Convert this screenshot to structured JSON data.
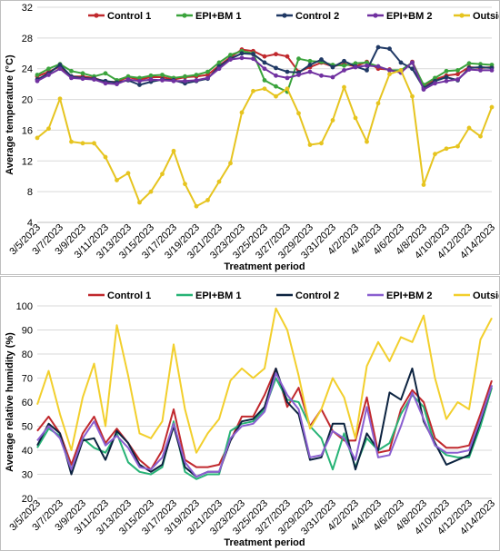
{
  "chart_data": [
    {
      "type": "line",
      "xlabel": "Treatment period",
      "ylabel": "Average temperature (°C)",
      "ylim": [
        4,
        32
      ],
      "yticks": [
        "4",
        "8",
        "12",
        "16",
        "20",
        "24",
        "28",
        "32"
      ],
      "grid": "horizontal",
      "legend_position": "top",
      "x_labels": [
        "3/5/2023",
        "3/7/2023",
        "3/9/2023",
        "3/11/2023",
        "3/13/2023",
        "3/15/2023",
        "3/17/2023",
        "3/19/2023",
        "3/21/2023",
        "3/23/2023",
        "3/25/2023",
        "3/27/2023",
        "3/29/2023",
        "3/31/2023",
        "4/2/2023",
        "4/4/2023",
        "4/6/2023",
        "4/8/2023",
        "4/10/2023",
        "4/12/2023",
        "4/14/2023"
      ],
      "series": [
        {
          "name": "Control 1",
          "color": "#c0282d",
          "marker": "o",
          "values": [
            23,
            23.6,
            24.3,
            23,
            23,
            22.8,
            22.3,
            22.3,
            22.9,
            22.6,
            22.9,
            22.9,
            22.6,
            22.9,
            23,
            23.2,
            24.4,
            25.5,
            26.5,
            26.3,
            25.6,
            25.9,
            25.6,
            23.6,
            24.2,
            24.8,
            24.3,
            24.6,
            24.3,
            24.9,
            24,
            23.9,
            23.5,
            24.9,
            21.8,
            22.6,
            23.1,
            23.3,
            24.2,
            24.1,
            24.2
          ]
        },
        {
          "name": "EPI+BM 1",
          "color": "#3aa33c",
          "marker": "o",
          "values": [
            23.2,
            24,
            24.6,
            23.7,
            23.4,
            23,
            23.4,
            22.5,
            23,
            22.8,
            23.1,
            23.2,
            22.8,
            23,
            23.2,
            23.6,
            24.8,
            25.8,
            26.3,
            26,
            22.5,
            21.7,
            21,
            25.3,
            25,
            24.9,
            24.5,
            24.4,
            24.7,
            24.8,
            24.3,
            23.8,
            23.8,
            24.8,
            21.9,
            22.8,
            23.7,
            23.8,
            24.7,
            24.6,
            24.5
          ]
        },
        {
          "name": "Control 2",
          "color": "#1f3864",
          "marker": "o",
          "values": [
            22.6,
            23.4,
            24.5,
            23,
            22.8,
            22.7,
            22.4,
            22.2,
            22.5,
            21.9,
            22.3,
            22.6,
            22.5,
            22.1,
            22.4,
            22.7,
            24.3,
            25.3,
            26,
            25.9,
            24.8,
            24.1,
            23.6,
            23.5,
            24.5,
            25.2,
            24.2,
            25,
            24.3,
            23.8,
            26.8,
            26.6,
            24.8,
            24,
            21.5,
            22.4,
            22.9,
            22.5,
            24.1,
            24.2,
            24.1
          ]
        },
        {
          "name": "EPI+BM 2",
          "color": "#7030a0",
          "marker": "o",
          "values": [
            22.4,
            23.2,
            24,
            22.8,
            22.7,
            22.6,
            22.1,
            22,
            22.6,
            22.4,
            22.6,
            22.5,
            22.4,
            22.4,
            22.5,
            22.8,
            24,
            25.2,
            25.4,
            25.3,
            24,
            23.1,
            22.8,
            23.2,
            23.6,
            23.1,
            22.9,
            23.8,
            24.2,
            24.4,
            24.3,
            23.8,
            23.5,
            24.8,
            21.3,
            22.1,
            22.4,
            22.6,
            23.9,
            23.8,
            23.8
          ]
        },
        {
          "name": "Outside",
          "color": "#e6c41f",
          "marker": "o",
          "values": [
            15,
            16.2,
            20.1,
            14.5,
            14.3,
            14.3,
            12.5,
            9.5,
            10.4,
            6.6,
            8,
            10.3,
            13.3,
            9,
            6.1,
            6.9,
            9.3,
            11.7,
            18.3,
            21.1,
            21.4,
            20.4,
            21.4,
            18.2,
            14.1,
            14.3,
            17.3,
            21.6,
            17.6,
            14.5,
            19.5,
            23.3,
            23.8,
            20.4,
            8.9,
            12.9,
            13.6,
            13.9,
            16.3,
            15.2,
            19
          ]
        }
      ]
    },
    {
      "type": "line",
      "xlabel": "Treatment period",
      "ylabel": "Average relative humidity (%)",
      "ylim": [
        20,
        100
      ],
      "yticks": [
        "20",
        "30",
        "40",
        "50",
        "60",
        "70",
        "80",
        "90",
        "100"
      ],
      "grid": "horizontal",
      "legend_position": "top",
      "x_labels": [
        "3/5/2023",
        "3/7/2023",
        "3/9/2023",
        "3/11/2023",
        "3/13/2023",
        "3/15/2023",
        "3/17/2023",
        "3/19/2023",
        "3/21/2023",
        "3/23/2023",
        "3/25/2023",
        "3/27/2023",
        "3/29/2023",
        "3/31/2023",
        "4/2/2023",
        "4/4/2023",
        "4/6/2023",
        "4/8/2023",
        "4/10/2023",
        "4/12/2023",
        "4/14/2023"
      ],
      "series": [
        {
          "name": "Control 1",
          "color": "#c0282d",
          "values": [
            48,
            54,
            47,
            34,
            47,
            54,
            43,
            49,
            43,
            36,
            32,
            40,
            57,
            36,
            33,
            33,
            34,
            44,
            54,
            54,
            63,
            74,
            58,
            66,
            50,
            57,
            48,
            44,
            44,
            62,
            39,
            40,
            57,
            65,
            60,
            45,
            41,
            41,
            42,
            55,
            69
          ]
        },
        {
          "name": "EPI+BM 1",
          "color": "#27b376",
          "values": [
            41,
            49,
            46,
            32,
            45,
            41,
            39,
            47,
            35,
            31,
            30,
            33,
            52,
            31,
            28,
            30,
            30,
            48,
            51,
            52,
            57,
            70,
            61,
            60,
            50,
            45,
            32,
            47,
            33,
            45,
            40,
            43,
            55,
            63,
            58,
            42,
            38,
            37,
            37,
            50,
            66
          ]
        },
        {
          "name": "Control 2",
          "color": "#0c2340",
          "values": [
            42,
            51,
            47,
            30,
            44,
            45,
            36,
            48,
            43,
            34,
            31,
            34,
            50,
            33,
            29,
            31,
            31,
            44,
            52,
            53,
            58,
            74,
            60,
            55,
            36,
            37,
            51,
            51,
            32,
            47,
            40,
            64,
            61,
            74,
            52,
            43,
            34,
            36,
            38,
            52,
            67
          ]
        },
        {
          "name": "EPI+BM 2",
          "color": "#8a5fd0",
          "values": [
            44,
            50,
            45,
            32,
            45,
            52,
            42,
            46,
            41,
            33,
            32,
            37,
            51,
            35,
            29,
            31,
            31,
            45,
            50,
            51,
            56,
            72,
            63,
            57,
            37,
            38,
            48,
            45,
            36,
            58,
            37,
            38,
            50,
            64,
            53,
            42,
            39,
            39,
            40,
            53,
            67
          ]
        },
        {
          "name": "Outside",
          "color": "#f2cf2c",
          "values": [
            59,
            73,
            55,
            40,
            62,
            76,
            50,
            92,
            71,
            47,
            45,
            52,
            84,
            57,
            39,
            47,
            53,
            69,
            74,
            70,
            74,
            99,
            90,
            71,
            49,
            57,
            70,
            62,
            45,
            75,
            85,
            77,
            87,
            85,
            96,
            70,
            53,
            60,
            57,
            86,
            95
          ]
        }
      ]
    }
  ]
}
